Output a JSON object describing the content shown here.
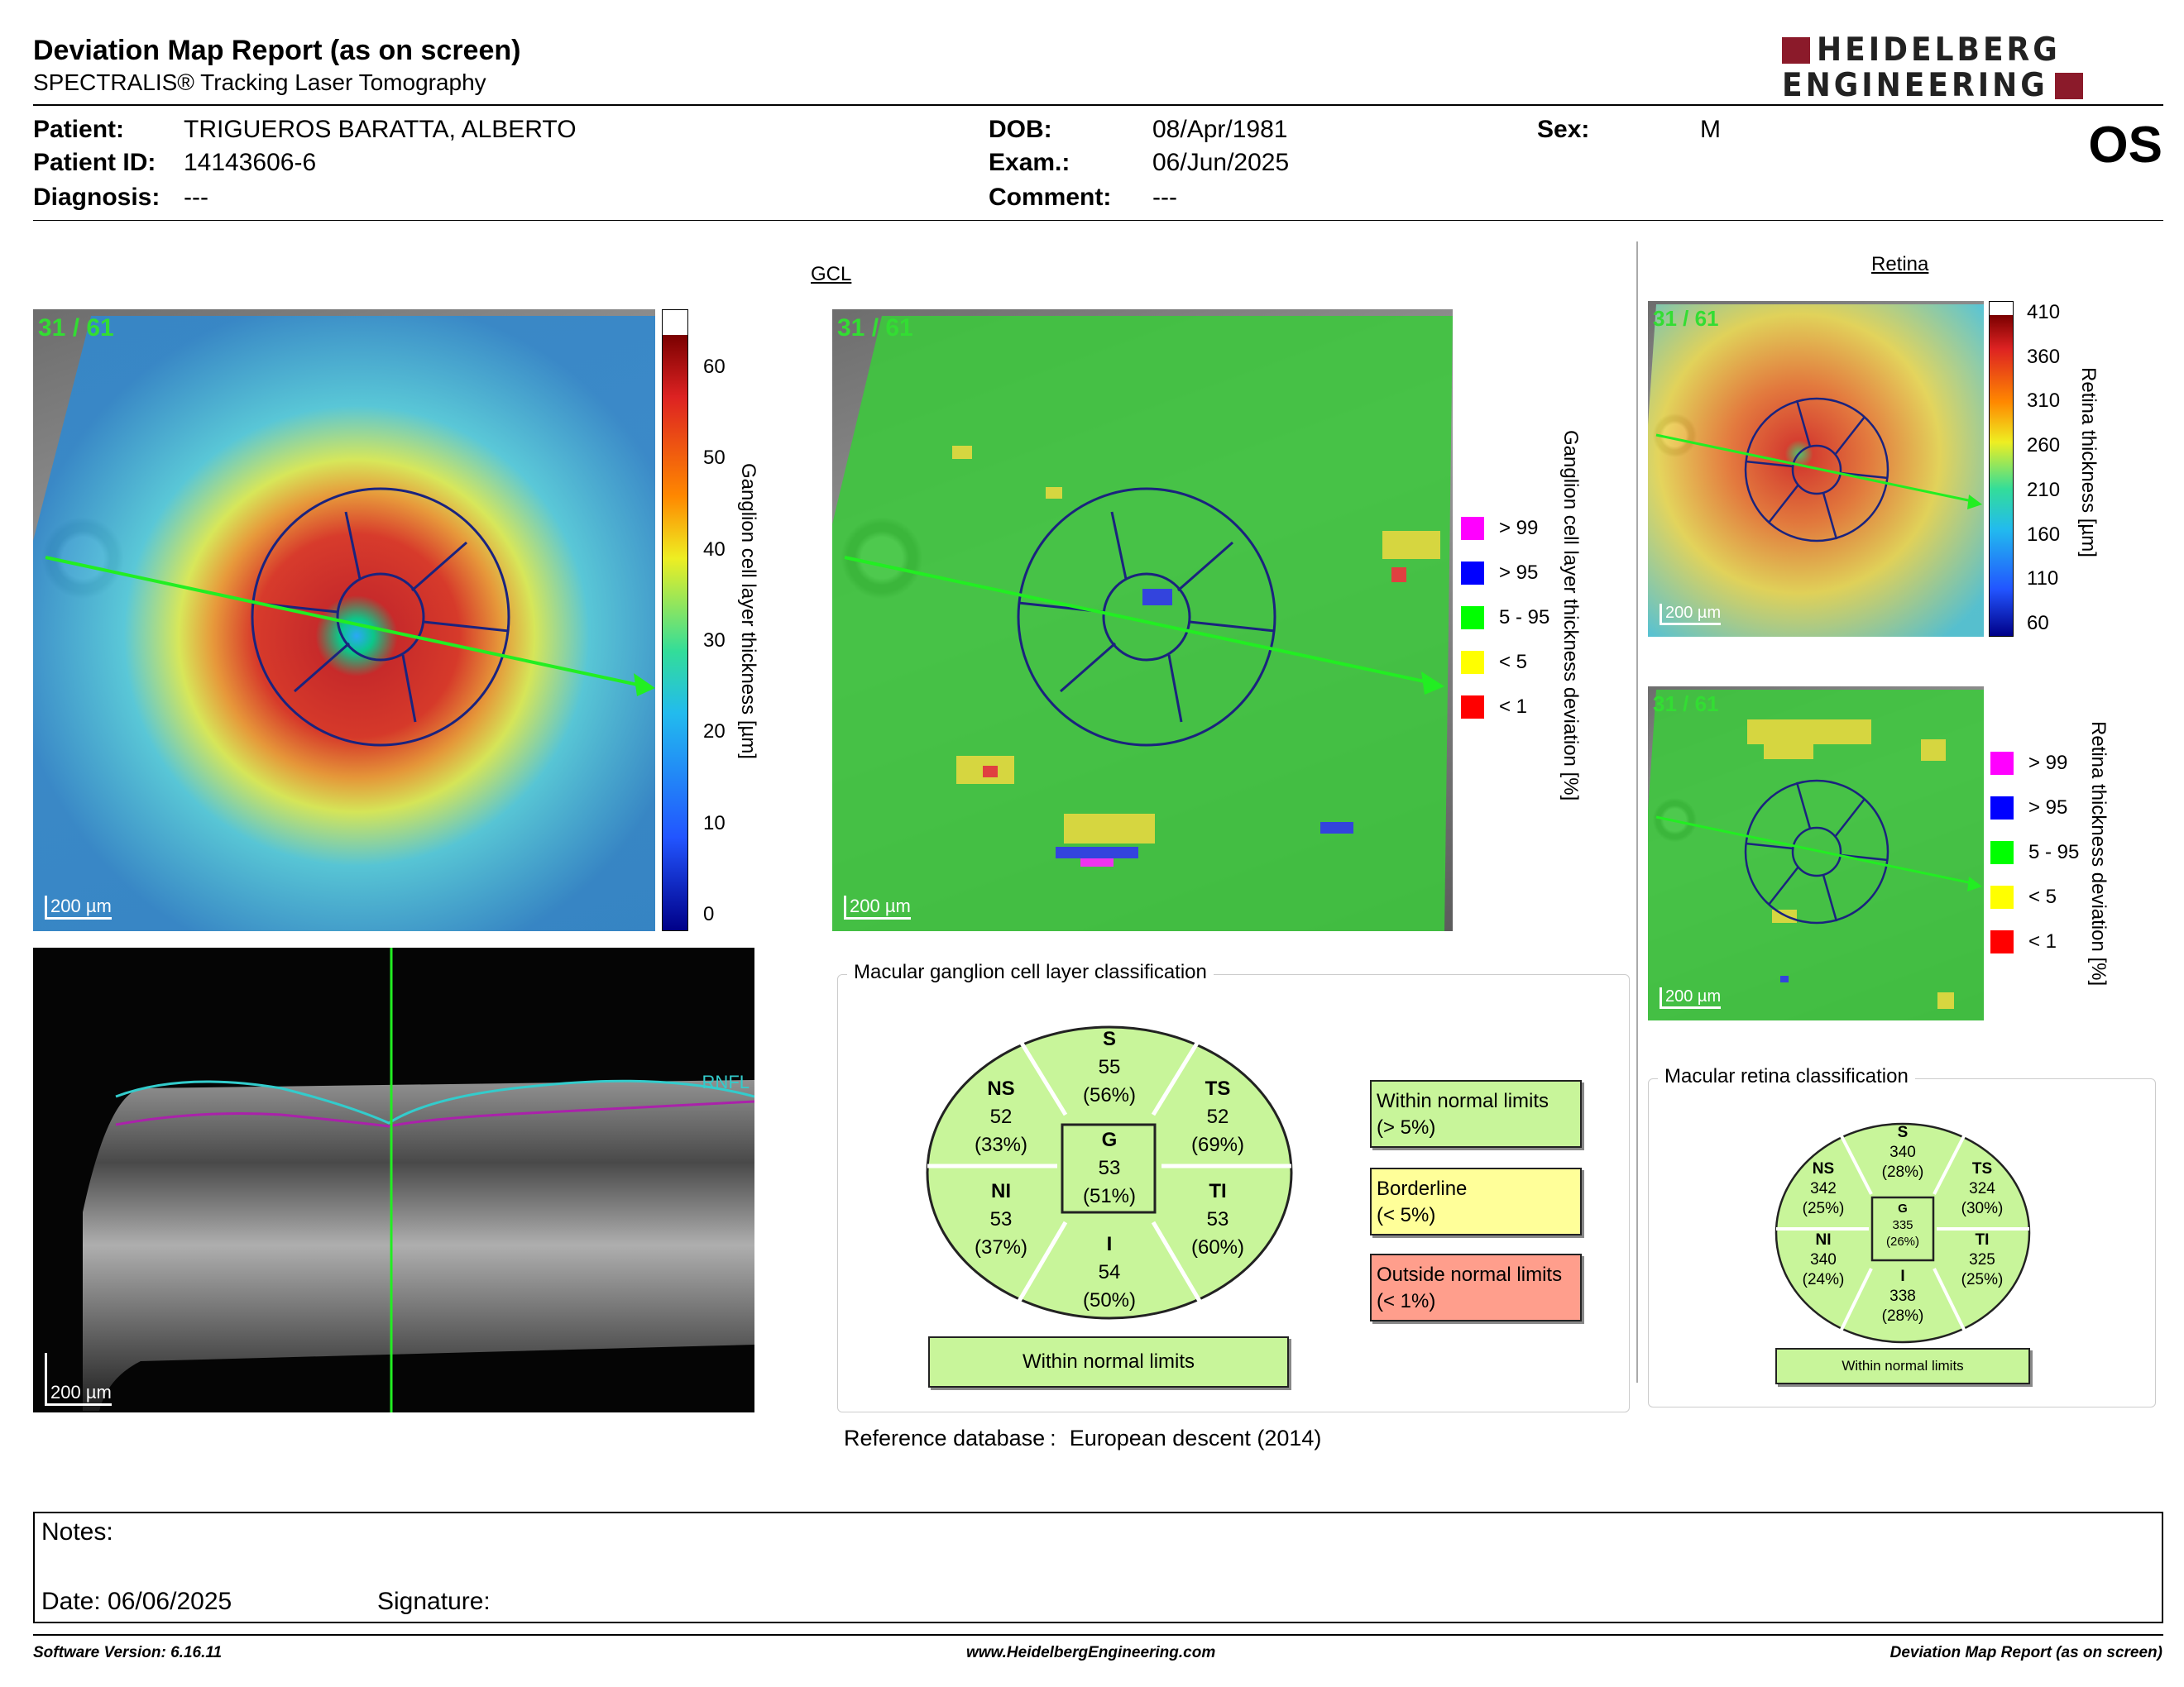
{
  "header": {
    "title": "Deviation Map Report (as on screen)",
    "subtitle": "SPECTRALIS® Tracking Laser Tomography",
    "logo_line1": "HEIDELBERG",
    "logo_line2": "ENGINEERING",
    "eye": "OS"
  },
  "patient": {
    "patient_label": "Patient:",
    "patient_value": "TRIGUEROS BARATTA, ALBERTO",
    "id_label": "Patient ID:",
    "id_value": "14143606-6",
    "diag_label": "Diagnosis:",
    "diag_value": "---",
    "dob_label": "DOB:",
    "dob_value": "08/Apr/1981",
    "exam_label": "Exam.:",
    "exam_value": "06/Jun/2025",
    "comment_label": "Comment:",
    "comment_value": "---",
    "sex_label": "Sex:",
    "sex_value": "M"
  },
  "gcl": {
    "section_label": "GCL",
    "count": "31 / 61",
    "scale": "200 µm",
    "thickness_ticks": [
      "60",
      "50",
      "40",
      "30",
      "20",
      "10",
      "0"
    ],
    "thickness_label": "Ganglion cell layer thickness [µm]",
    "deviation_label": "Ganglion cell layer thickness deviation [%]",
    "legend": [
      {
        "label": "> 99",
        "color": "#ff00ff"
      },
      {
        "label": "> 95",
        "color": "#0000ff"
      },
      {
        "label": "5 - 95",
        "color": "#00ff00"
      },
      {
        "label": "< 5",
        "color": "#ffff00"
      },
      {
        "label": "< 1",
        "color": "#ff0000"
      }
    ]
  },
  "bscan": {
    "layer_label": "RNFL",
    "scale": "200 µm"
  },
  "retina": {
    "section_label": "Retina",
    "count": "31 / 61",
    "scale": "200 µm",
    "thickness_ticks": [
      "410",
      "360",
      "310",
      "260",
      "210",
      "160",
      "110",
      "60"
    ],
    "thickness_label": "Retina thickness [µm]",
    "deviation_label": "Retina thickness deviation [%]",
    "legend": [
      {
        "label": "> 99",
        "color": "#ff00ff"
      },
      {
        "label": "> 95",
        "color": "#0000ff"
      },
      {
        "label": "5 - 95",
        "color": "#00ff00"
      },
      {
        "label": "< 5",
        "color": "#ffff00"
      },
      {
        "label": "< 1",
        "color": "#ff0000"
      }
    ]
  },
  "gcl_classification": {
    "title": "Macular ganglion cell layer classification",
    "S": {
      "name": "S",
      "value": "55",
      "pct": "(56%)"
    },
    "NS": {
      "name": "NS",
      "value": "52",
      "pct": "(33%)"
    },
    "TS": {
      "name": "TS",
      "value": "52",
      "pct": "(69%)"
    },
    "G": {
      "name": "G",
      "value": "53",
      "pct": "(51%)"
    },
    "NI": {
      "name": "NI",
      "value": "53",
      "pct": "(37%)"
    },
    "TI": {
      "name": "TI",
      "value": "53",
      "pct": "(60%)"
    },
    "I": {
      "name": "I",
      "value": "54",
      "pct": "(50%)"
    },
    "result": "Within normal limits",
    "key_within_1": "Within normal limits",
    "key_within_2": "(> 5%)",
    "key_border_1": "Borderline",
    "key_border_2": "(< 5%)",
    "key_outside_1": "Outside normal limits",
    "key_outside_2": "(< 1%)",
    "colors": {
      "within": "#c8f59a",
      "borderline": "#ffff99",
      "outside": "#ff9e8c"
    }
  },
  "retina_classification": {
    "title": "Macular retina classification",
    "S": {
      "name": "S",
      "value": "340",
      "pct": "(28%)"
    },
    "NS": {
      "name": "NS",
      "value": "342",
      "pct": "(25%)"
    },
    "TS": {
      "name": "TS",
      "value": "324",
      "pct": "(30%)"
    },
    "G": {
      "name": "G",
      "value": "335",
      "pct": "(26%)"
    },
    "NI": {
      "name": "NI",
      "value": "340",
      "pct": "(24%)"
    },
    "TI": {
      "name": "TI",
      "value": "325",
      "pct": "(25%)"
    },
    "I": {
      "name": "I",
      "value": "338",
      "pct": "(28%)"
    },
    "result": "Within normal limits"
  },
  "reference": {
    "label": "Reference database",
    "colon": ":",
    "value": "European descent (2014)"
  },
  "notes": {
    "notes_label": "Notes:",
    "date_label": "Date: 06/06/2025",
    "signature_label": "Signature:"
  },
  "footer": {
    "software": "Software Version: 6.16.11",
    "website": "www.HeidelbergEngineering.com",
    "report": "Deviation Map Report (as on screen)"
  }
}
